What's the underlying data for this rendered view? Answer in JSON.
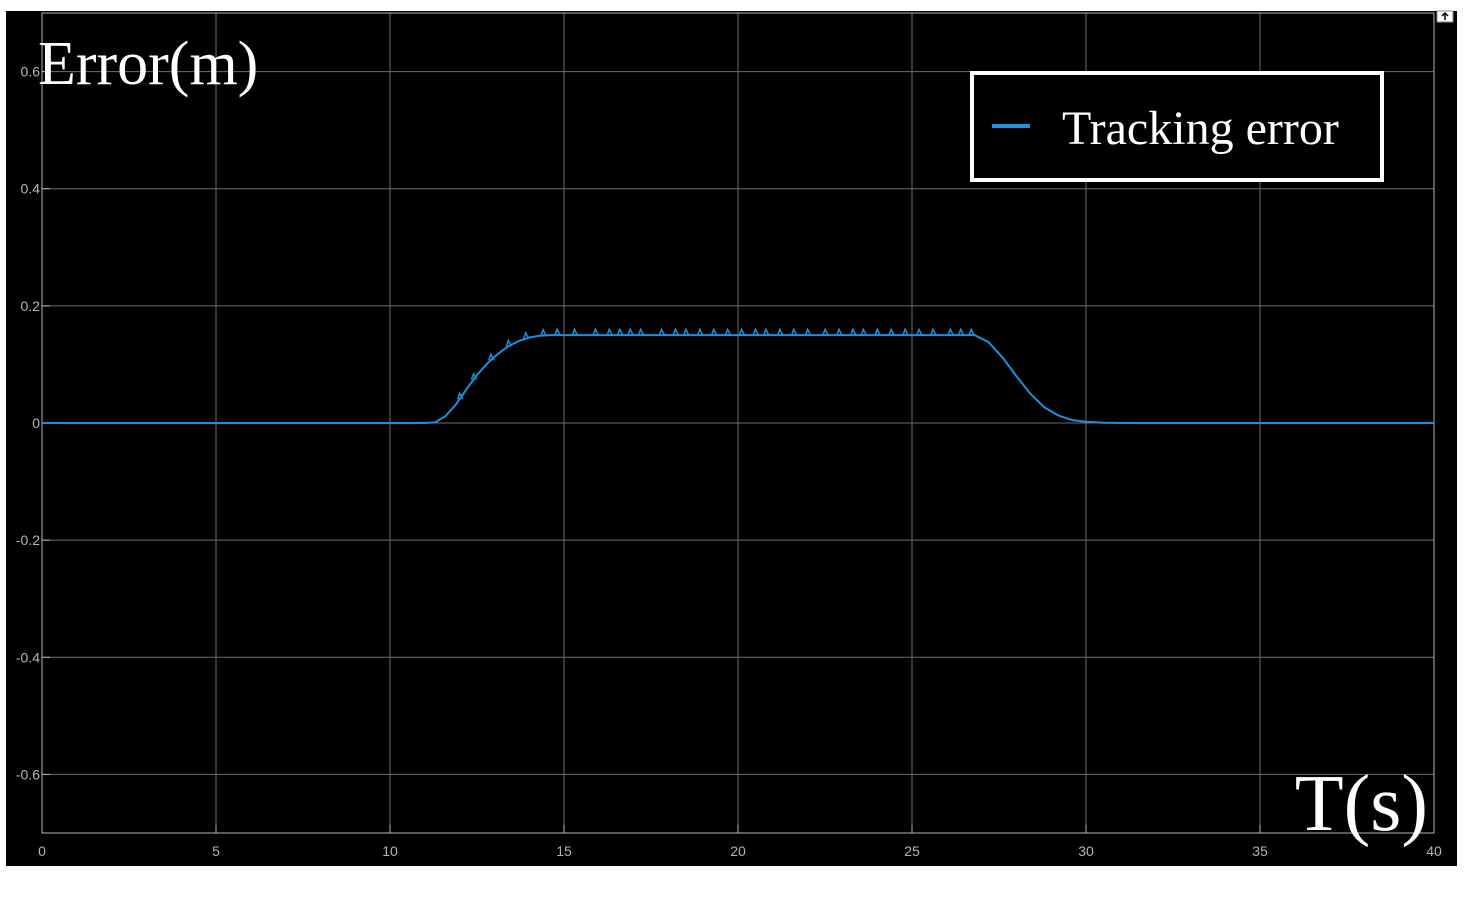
{
  "chart_data": {
    "type": "line",
    "ylabel": "Error(m)",
    "xlabel": "T(s)",
    "xlim": [
      0,
      40
    ],
    "ylim": [
      -0.7,
      0.7
    ],
    "x_ticks": [
      0,
      5,
      10,
      15,
      20,
      25,
      30,
      35,
      40
    ],
    "y_ticks": [
      -0.6,
      -0.4,
      -0.2,
      0,
      0.2,
      0.4,
      0.6
    ],
    "grid": true,
    "legend_position": "top-right",
    "background": "#000000",
    "series": [
      {
        "name": "Tracking error",
        "color": "#1f8fdc",
        "x": [
          0,
          5,
          10,
          11.0,
          11.3,
          11.6,
          11.9,
          12.2,
          12.5,
          12.8,
          13.1,
          13.4,
          13.7,
          14.0,
          14.3,
          14.6,
          15.0,
          16.0,
          17.0,
          18.0,
          19.0,
          20.0,
          21.0,
          22.0,
          23.0,
          24.0,
          25.0,
          26.0,
          26.8,
          27.2,
          27.6,
          28.0,
          28.4,
          28.8,
          29.2,
          29.6,
          30.0,
          30.5,
          31.0,
          35.0,
          40.0
        ],
        "y": [
          0,
          0,
          0,
          0,
          0.001,
          0.012,
          0.032,
          0.058,
          0.082,
          0.102,
          0.118,
          0.131,
          0.14,
          0.146,
          0.149,
          0.15,
          0.15,
          0.15,
          0.15,
          0.15,
          0.15,
          0.15,
          0.15,
          0.15,
          0.15,
          0.15,
          0.15,
          0.15,
          0.15,
          0.138,
          0.112,
          0.08,
          0.05,
          0.027,
          0.013,
          0.005,
          0.002,
          0.0005,
          0,
          0,
          0
        ]
      }
    ],
    "spike_times": [
      12.0,
      12.4,
      12.9,
      13.4,
      13.9,
      14.4,
      14.8,
      15.3,
      15.9,
      16.3,
      16.6,
      16.9,
      17.2,
      17.8,
      18.2,
      18.5,
      18.9,
      19.3,
      19.7,
      20.1,
      20.5,
      20.8,
      21.2,
      21.6,
      22.0,
      22.5,
      22.9,
      23.3,
      23.6,
      24.0,
      24.4,
      24.8,
      25.2,
      25.6,
      26.1,
      26.4,
      26.7
    ]
  }
}
